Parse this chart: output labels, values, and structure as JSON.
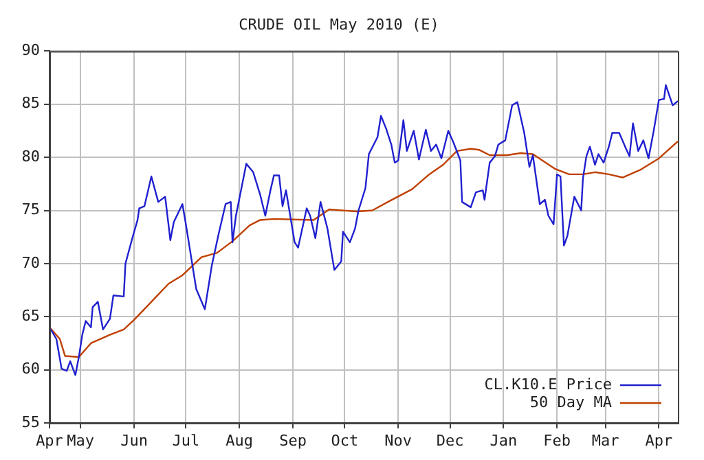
{
  "chart_data": {
    "type": "line",
    "title": "CRUDE OIL May 2010 (E)",
    "xlim": [
      "2009-04-13",
      "2010-04-12"
    ],
    "xticks": [
      {
        "value": "2009-04-13",
        "label": "Apr"
      },
      {
        "value": "2009-05-01",
        "label": "May"
      },
      {
        "value": "2009-06-01",
        "label": "Jun"
      },
      {
        "value": "2009-07-01",
        "label": "Jul"
      },
      {
        "value": "2009-08-01",
        "label": "Aug"
      },
      {
        "value": "2009-09-01",
        "label": "Sep"
      },
      {
        "value": "2009-10-01",
        "label": "Oct"
      },
      {
        "value": "2009-11-01",
        "label": "Nov"
      },
      {
        "value": "2009-12-01",
        "label": "Dec"
      },
      {
        "value": "2010-01-01",
        "label": "Jan"
      },
      {
        "value": "2010-02-01",
        "label": "Feb"
      },
      {
        "value": "2010-03-01",
        "label": "Mar"
      },
      {
        "value": "2010-04-01",
        "label": "Apr"
      }
    ],
    "ylim": [
      55,
      90
    ],
    "yticks": [
      55,
      60,
      65,
      70,
      75,
      80,
      85,
      90
    ],
    "grid": true,
    "legend": "bottom right",
    "marker": "none",
    "line_style": "solid",
    "series": [
      {
        "name": "CL.K10.E Price",
        "color": "#2020d0",
        "x": [
          "2009-04-13",
          "2009-04-17",
          "2009-04-20",
          "2009-04-23",
          "2009-04-25",
          "2009-04-28",
          "2009-04-30",
          "2009-05-02",
          "2009-05-04",
          "2009-05-07",
          "2009-05-08",
          "2009-05-11",
          "2009-05-14",
          "2009-05-18",
          "2009-05-20",
          "2009-05-26",
          "2009-05-27",
          "2009-05-31",
          "2009-06-03",
          "2009-06-04",
          "2009-06-07",
          "2009-06-11",
          "2009-06-15",
          "2009-06-19",
          "2009-06-22",
          "2009-06-24",
          "2009-06-29",
          "2009-07-01",
          "2009-07-07",
          "2009-07-12",
          "2009-07-16",
          "2009-07-20",
          "2009-07-24",
          "2009-07-27",
          "2009-07-28",
          "2009-07-30",
          "2009-08-05",
          "2009-08-09",
          "2009-08-13",
          "2009-08-16",
          "2009-08-19",
          "2009-08-21",
          "2009-08-24",
          "2009-08-26",
          "2009-08-28",
          "2009-09-02",
          "2009-09-04",
          "2009-09-09",
          "2009-09-11",
          "2009-09-14",
          "2009-09-17",
          "2009-09-21",
          "2009-09-25",
          "2009-09-29",
          "2009-09-30",
          "2009-10-04",
          "2009-10-07",
          "2009-10-09",
          "2009-10-13",
          "2009-10-15",
          "2009-10-20",
          "2009-10-22",
          "2009-10-25",
          "2009-10-28",
          "2009-10-30",
          "2009-11-01",
          "2009-11-04",
          "2009-11-06",
          "2009-11-10",
          "2009-11-13",
          "2009-11-17",
          "2009-11-20",
          "2009-11-23",
          "2009-11-26",
          "2009-11-30",
          "2009-12-03",
          "2009-12-07",
          "2009-12-08",
          "2009-12-13",
          "2009-12-16",
          "2009-12-20",
          "2009-12-21",
          "2009-12-24",
          "2009-12-27",
          "2009-12-29",
          "2010-01-02",
          "2010-01-06",
          "2010-01-09",
          "2010-01-13",
          "2010-01-16",
          "2010-01-18",
          "2010-01-22",
          "2010-01-25",
          "2010-01-27",
          "2010-01-30",
          "2010-02-01",
          "2010-02-03",
          "2010-02-05",
          "2010-02-07",
          "2010-02-11",
          "2010-02-15",
          "2010-02-16",
          "2010-02-18",
          "2010-02-20",
          "2010-02-23",
          "2010-02-25",
          "2010-02-28",
          "2010-03-03",
          "2010-03-05",
          "2010-03-09",
          "2010-03-13",
          "2010-03-15",
          "2010-03-17",
          "2010-03-20",
          "2010-03-23",
          "2010-03-26",
          "2010-03-29",
          "2010-04-01",
          "2010-04-04",
          "2010-04-05",
          "2010-04-09",
          "2010-04-12"
        ],
        "values": [
          64.0,
          62.9,
          60.1,
          59.9,
          60.8,
          59.5,
          61.2,
          63.3,
          64.6,
          64.0,
          65.9,
          66.4,
          63.8,
          64.8,
          67.0,
          66.9,
          70.0,
          72.4,
          74.1,
          75.2,
          75.4,
          78.2,
          75.8,
          76.3,
          72.2,
          73.9,
          75.6,
          73.7,
          67.6,
          65.7,
          69.8,
          72.8,
          75.6,
          75.8,
          72.0,
          74.5,
          79.4,
          78.6,
          76.5,
          74.5,
          76.9,
          78.3,
          78.3,
          75.4,
          76.9,
          72.0,
          71.5,
          75.2,
          74.5,
          72.4,
          75.8,
          73.3,
          69.4,
          70.2,
          73.0,
          72.0,
          73.3,
          75.0,
          77.1,
          80.3,
          81.9,
          83.9,
          82.7,
          81.2,
          79.5,
          79.7,
          83.5,
          80.6,
          82.5,
          79.8,
          82.6,
          80.6,
          81.2,
          79.9,
          82.5,
          81.4,
          79.7,
          75.8,
          75.3,
          76.7,
          76.9,
          76.0,
          79.5,
          80.1,
          81.2,
          81.6,
          84.9,
          85.2,
          82.3,
          79.1,
          80.2,
          75.6,
          76.0,
          74.5,
          73.7,
          78.4,
          78.2,
          71.7,
          72.6,
          76.3,
          75.0,
          78.0,
          80.1,
          81.0,
          79.3,
          80.3,
          79.5,
          81.0,
          82.3,
          82.3,
          80.8,
          80.1,
          83.2,
          80.6,
          81.6,
          79.9,
          82.5,
          85.4,
          85.5,
          86.8,
          84.9,
          85.3
        ]
      },
      {
        "name": "50 Day MA",
        "color": "#c04000",
        "x": [
          "2009-04-13",
          "2009-04-19",
          "2009-04-22",
          "2009-04-30",
          "2009-05-07",
          "2009-05-18",
          "2009-05-26",
          "2009-06-01",
          "2009-06-11",
          "2009-06-21",
          "2009-06-29",
          "2009-07-10",
          "2009-07-19",
          "2009-07-28",
          "2009-08-07",
          "2009-08-13",
          "2009-08-21",
          "2009-09-13",
          "2009-09-22",
          "2009-10-08",
          "2009-10-17",
          "2009-10-26",
          "2009-11-09",
          "2009-11-19",
          "2009-11-27",
          "2009-12-05",
          "2009-12-13",
          "2009-12-18",
          "2009-12-24",
          "2010-01-03",
          "2010-01-11",
          "2010-01-18",
          "2010-01-31",
          "2010-02-08",
          "2010-02-16",
          "2010-02-23",
          "2010-03-03",
          "2010-03-11",
          "2010-03-21",
          "2010-04-01",
          "2010-04-12"
        ],
        "values": [
          64.0,
          62.9,
          61.3,
          61.2,
          62.5,
          63.3,
          63.8,
          64.7,
          66.4,
          68.1,
          68.9,
          70.6,
          71.0,
          72.1,
          73.6,
          74.1,
          74.2,
          74.1,
          75.1,
          74.9,
          75.0,
          75.8,
          77.0,
          78.4,
          79.3,
          80.6,
          80.8,
          80.7,
          80.2,
          80.2,
          80.4,
          80.3,
          78.9,
          78.4,
          78.4,
          78.6,
          78.4,
          78.1,
          78.8,
          79.9,
          81.5
        ]
      }
    ]
  }
}
